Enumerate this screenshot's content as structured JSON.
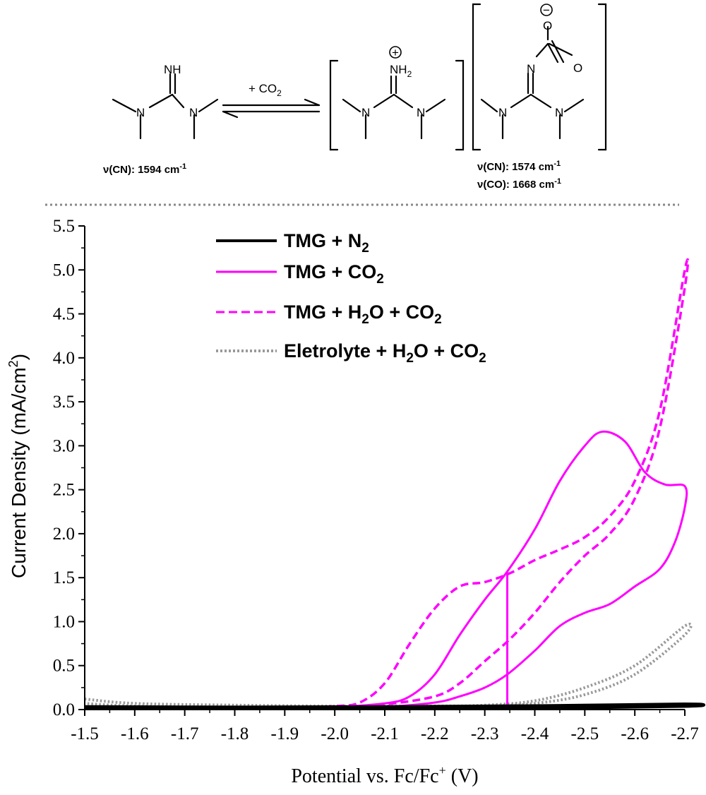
{
  "scheme": {
    "reagent": "+ CO",
    "reagent_sub": "2",
    "atoms": {
      "nh": "NH",
      "nh2": "NH",
      "nh2_sub": "2",
      "n": "N",
      "o": "O",
      "plus": "+",
      "minus": "−"
    },
    "tmg_freq": {
      "prefix": "ν(CN): 1594 cm",
      "sup": "-1"
    },
    "product_freq_cn": {
      "prefix": "ν(CN): 1574 cm",
      "sup": "-1"
    },
    "product_freq_co": {
      "prefix": "ν(CO): 1668 cm",
      "sup": "-1"
    }
  },
  "chart_data": {
    "type": "line",
    "xlabel": "Potential vs. Fc/Fc",
    "xlabel_sup": "+",
    "xlabel_suffix": " (V)",
    "ylabel": "Current Density (mA/cm",
    "ylabel_sup": "2",
    "ylabel_suffix": ")",
    "xlim": [
      -1.5,
      -2.7
    ],
    "ylim": [
      0,
      5.5
    ],
    "xticks": [
      "-1.5",
      "-1.6",
      "-1.7",
      "-1.8",
      "-1.9",
      "-2.0",
      "-2.1",
      "-2.2",
      "-2.3",
      "-2.4",
      "-2.5",
      "-2.6",
      "-2.7"
    ],
    "yticks": [
      "0.0",
      "0.5",
      "1.0",
      "1.5",
      "2.0",
      "2.5",
      "3.0",
      "3.5",
      "4.0",
      "4.5",
      "5.0",
      "5.5"
    ],
    "legend_position": "top-left",
    "series": [
      {
        "key": "n2",
        "name": "TMG + N",
        "name_sub": "2",
        "name_suffix": "",
        "color": "#000000",
        "style": "solid",
        "x": [
          -1.5,
          -1.8,
          -2.1,
          -2.4,
          -2.7,
          -2.7,
          -2.4,
          -2.1,
          -1.8,
          -1.5
        ],
        "y": [
          0.02,
          0.015,
          0.015,
          0.02,
          0.04,
          0.06,
          0.04,
          0.03,
          0.025,
          0.03
        ]
      },
      {
        "key": "co2",
        "name": "TMG + CO",
        "name_sub": "2",
        "name_suffix": "",
        "color": "#ff00ff",
        "style": "solid",
        "x": [
          -1.5,
          -1.9,
          -2.0,
          -2.1,
          -2.15,
          -2.2,
          -2.25,
          -2.3,
          -2.345,
          -2.4,
          -2.45,
          -2.5,
          -2.535,
          -2.58,
          -2.62,
          -2.66,
          -2.7,
          -2.7,
          -2.68,
          -2.65,
          -2.6,
          -2.55,
          -2.5,
          -2.45,
          -2.4,
          -2.345,
          -2.3,
          -2.25,
          -2.2,
          -2.1,
          -2.0,
          -1.5
        ],
        "y": [
          0.02,
          0.02,
          0.03,
          0.07,
          0.15,
          0.4,
          0.85,
          1.25,
          1.57,
          2.05,
          2.6,
          3.0,
          3.16,
          3.05,
          2.7,
          2.56,
          2.54,
          2.3,
          1.9,
          1.6,
          1.4,
          1.2,
          1.1,
          0.95,
          0.67,
          0.4,
          0.25,
          0.15,
          0.08,
          0.03,
          0.02,
          0.02
        ]
      },
      {
        "key": "co2_vertical",
        "name": "",
        "color": "#ff00ff",
        "style": "solid",
        "x": [
          -2.345,
          -2.345
        ],
        "y": [
          0.02,
          1.57
        ]
      },
      {
        "key": "h2o_co2",
        "name": "TMG + H",
        "name_sub": "2",
        "name_suffix": "O + CO",
        "name_sub2": "2",
        "color": "#ff00ff",
        "style": "dashed",
        "x": [
          -1.5,
          -1.9,
          -2.0,
          -2.05,
          -2.1,
          -2.15,
          -2.2,
          -2.25,
          -2.3,
          -2.35,
          -2.4,
          -2.45,
          -2.5,
          -2.55,
          -2.6,
          -2.65,
          -2.7,
          -2.7,
          -2.65,
          -2.6,
          -2.55,
          -2.5,
          -2.45,
          -2.4,
          -2.35,
          -2.3,
          -2.25,
          -2.2,
          -2.1,
          -2.0,
          -1.5
        ],
        "y": [
          0.02,
          0.02,
          0.04,
          0.08,
          0.3,
          0.75,
          1.15,
          1.4,
          1.45,
          1.55,
          1.7,
          1.82,
          1.96,
          2.2,
          2.6,
          3.4,
          5.0,
          4.8,
          3.2,
          2.4,
          2.0,
          1.75,
          1.45,
          1.1,
          0.8,
          0.55,
          0.3,
          0.15,
          0.06,
          0.03,
          0.02
        ]
      },
      {
        "key": "electrolyte",
        "name": "Eletrolyte + H",
        "name_sub": "2",
        "name_suffix": "O + CO",
        "name_sub2": "2",
        "color": "#999999",
        "style": "dotted",
        "x": [
          -1.5,
          -1.6,
          -1.8,
          -2.0,
          -2.2,
          -2.3,
          -2.4,
          -2.5,
          -2.6,
          -2.7,
          -2.7,
          -2.6,
          -2.5,
          -2.4,
          -2.3,
          -2.2,
          -2.0,
          -1.8,
          -1.6,
          -1.5
        ],
        "y": [
          0.12,
          0.07,
          0.05,
          0.04,
          0.04,
          0.05,
          0.1,
          0.25,
          0.5,
          0.95,
          0.85,
          0.4,
          0.17,
          0.07,
          0.04,
          0.03,
          0.03,
          0.03,
          0.04,
          0.07
        ]
      }
    ]
  }
}
